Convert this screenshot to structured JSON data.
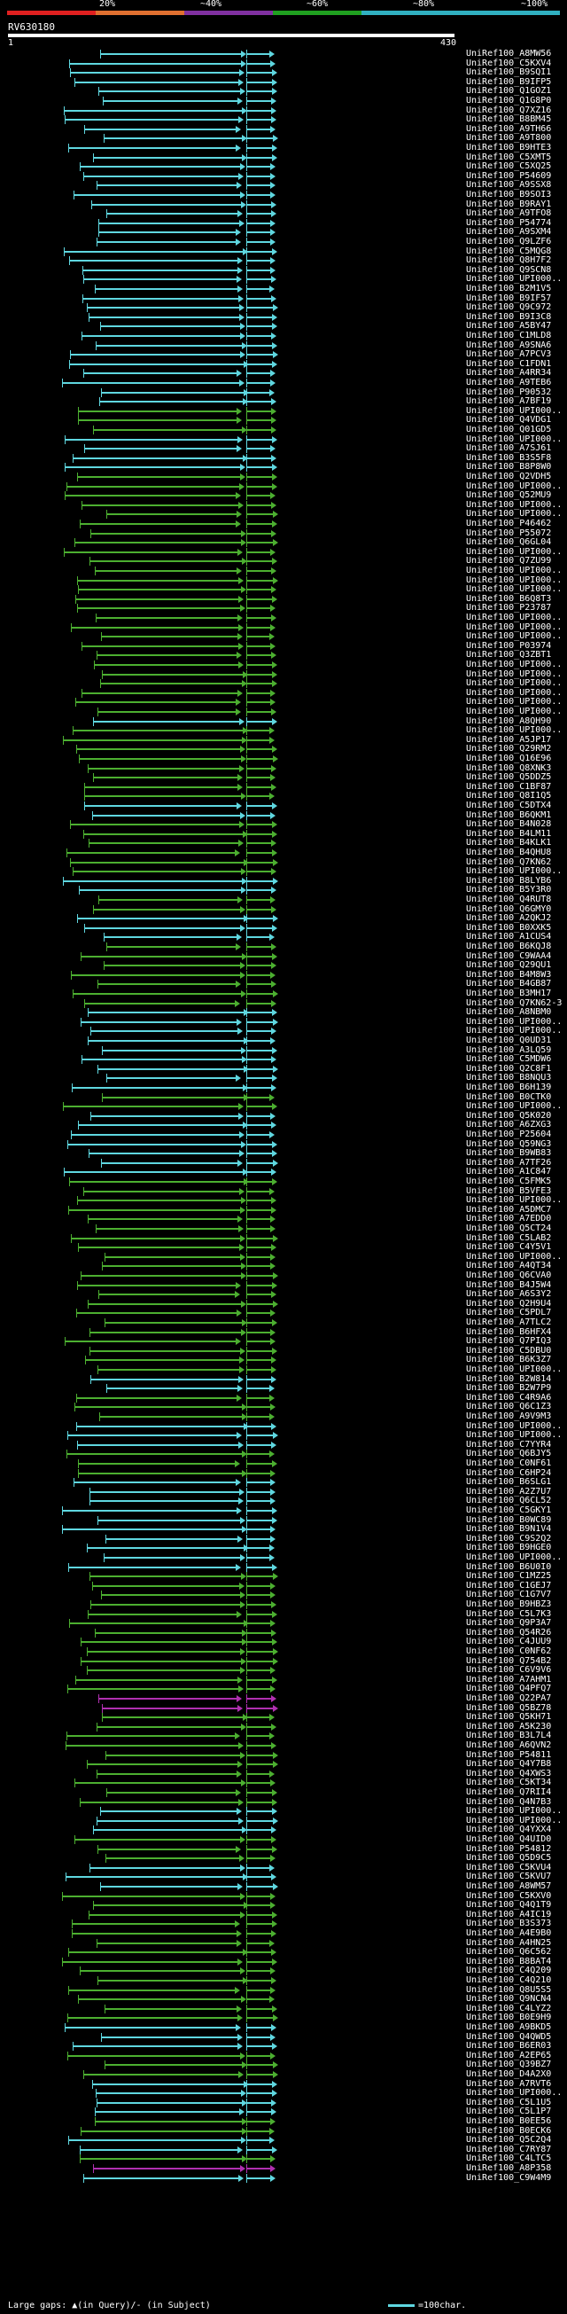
{
  "title": "RV630180",
  "query_start": "1",
  "query_end": "430",
  "scale": {
    "labels": [
      "20%",
      "~40%",
      "~60%",
      "~80%",
      "~100%"
    ],
    "colors": [
      "#e02020",
      "#e07030",
      "#8030a0",
      "#20a020",
      "#30b0c0"
    ]
  },
  "footer": "Large gaps: ▲(in Query)/- (in Subject)",
  "legend": "=100char.",
  "colors": {
    "cyan": "#5fd7e0",
    "green": "#4caf30",
    "magenta": "#b030b0"
  },
  "hits": [
    {
      "acc": "UniRef100_A8MW56",
      "c": "cyan"
    },
    {
      "acc": "UniRef100_C5KXV4",
      "c": "cyan"
    },
    {
      "acc": "UniRef100_B9SQI1",
      "c": "cyan"
    },
    {
      "acc": "UniRef100_B9IFP5",
      "c": "cyan"
    },
    {
      "acc": "UniRef100_Q1GOZ1",
      "c": "cyan"
    },
    {
      "acc": "UniRef100_Q1G8P0",
      "c": "cyan"
    },
    {
      "acc": "UniRef100_Q7XZ16",
      "c": "cyan"
    },
    {
      "acc": "UniRef100_B8BM45",
      "c": "cyan"
    },
    {
      "acc": "UniRef100_A9TH66",
      "c": "cyan"
    },
    {
      "acc": "UniRef100_A9T800",
      "c": "cyan"
    },
    {
      "acc": "UniRef100_B9HTE3",
      "c": "cyan"
    },
    {
      "acc": "UniRef100_C5XMT5",
      "c": "cyan"
    },
    {
      "acc": "UniRef100_C5XQ25",
      "c": "cyan"
    },
    {
      "acc": "UniRef100_P54609",
      "c": "cyan"
    },
    {
      "acc": "UniRef100_A9SSX8",
      "c": "cyan"
    },
    {
      "acc": "UniRef100_B9SOI3",
      "c": "cyan"
    },
    {
      "acc": "UniRef100_B9RAY1",
      "c": "cyan"
    },
    {
      "acc": "UniRef100_A9TFO8",
      "c": "cyan"
    },
    {
      "acc": "UniRef100_P54774",
      "c": "cyan"
    },
    {
      "acc": "UniRef100_A9SXM4",
      "c": "cyan"
    },
    {
      "acc": "UniRef100_Q9LZF6",
      "c": "cyan"
    },
    {
      "acc": "UniRef100_C5MQG8",
      "c": "cyan"
    },
    {
      "acc": "UniRef100_Q8H7F2",
      "c": "cyan"
    },
    {
      "acc": "UniRef100_Q9SCN8",
      "c": "cyan"
    },
    {
      "acc": "UniRef100_UPI000..",
      "c": "cyan"
    },
    {
      "acc": "UniRef100_B2M1V5",
      "c": "cyan"
    },
    {
      "acc": "UniRef100_B9IF57",
      "c": "cyan"
    },
    {
      "acc": "UniRef100_Q9C972",
      "c": "cyan"
    },
    {
      "acc": "UniRef100_B9I3C8",
      "c": "cyan"
    },
    {
      "acc": "UniRef100_A5BY47",
      "c": "cyan"
    },
    {
      "acc": "UniRef100_C1MLD8",
      "c": "cyan"
    },
    {
      "acc": "UniRef100_A9SNA6",
      "c": "cyan"
    },
    {
      "acc": "UniRef100_A7PCV3",
      "c": "cyan"
    },
    {
      "acc": "UniRef100_C1FDN1",
      "c": "cyan"
    },
    {
      "acc": "UniRef100_A4RR34",
      "c": "cyan"
    },
    {
      "acc": "UniRef100_A9TEB6",
      "c": "cyan"
    },
    {
      "acc": "UniRef100_P90532",
      "c": "cyan"
    },
    {
      "acc": "UniRef100_A7BF19",
      "c": "cyan"
    },
    {
      "acc": "UniRef100_UPI000..",
      "c": "green"
    },
    {
      "acc": "UniRef100_Q4VDG1",
      "c": "green"
    },
    {
      "acc": "UniRef100_Q01GD5",
      "c": "green"
    },
    {
      "acc": "UniRef100_UPI000..",
      "c": "cyan"
    },
    {
      "acc": "UniRef100_A7SJ61",
      "c": "cyan"
    },
    {
      "acc": "UniRef100_B3S5F8",
      "c": "cyan"
    },
    {
      "acc": "UniRef100_B8P8W0",
      "c": "cyan"
    },
    {
      "acc": "UniRef100_Q2VDH5",
      "c": "green"
    },
    {
      "acc": "UniRef100_UPI000..",
      "c": "green"
    },
    {
      "acc": "UniRef100_Q52MU9",
      "c": "green"
    },
    {
      "acc": "UniRef100_UPI000..",
      "c": "green"
    },
    {
      "acc": "UniRef100_UPI000..",
      "c": "green"
    },
    {
      "acc": "UniRef100_P46462",
      "c": "green"
    },
    {
      "acc": "UniRef100_P55072",
      "c": "green"
    },
    {
      "acc": "UniRef100_Q6GL04",
      "c": "green"
    },
    {
      "acc": "UniRef100_UPI000..",
      "c": "green"
    },
    {
      "acc": "UniRef100_Q7ZU99",
      "c": "green"
    },
    {
      "acc": "UniRef100_UPI000..",
      "c": "green"
    },
    {
      "acc": "UniRef100_UPI000..",
      "c": "green"
    },
    {
      "acc": "UniRef100_UPI000..",
      "c": "green"
    },
    {
      "acc": "UniRef100_B6Q8T3",
      "c": "green"
    },
    {
      "acc": "UniRef100_P23787",
      "c": "green"
    },
    {
      "acc": "UniRef100_UPI000..",
      "c": "green"
    },
    {
      "acc": "UniRef100_UPI000..",
      "c": "green"
    },
    {
      "acc": "UniRef100_UPI000..",
      "c": "green"
    },
    {
      "acc": "UniRef100_P03974",
      "c": "green"
    },
    {
      "acc": "UniRef100_Q3ZBT1",
      "c": "green"
    },
    {
      "acc": "UniRef100_UPI000..",
      "c": "green"
    },
    {
      "acc": "UniRef100_UPI000..",
      "c": "green"
    },
    {
      "acc": "UniRef100_UPI000..",
      "c": "green"
    },
    {
      "acc": "UniRef100_UPI000..",
      "c": "green"
    },
    {
      "acc": "UniRef100_UPI000..",
      "c": "green"
    },
    {
      "acc": "UniRef100_UPI000..",
      "c": "green"
    },
    {
      "acc": "UniRef100_A8QH90",
      "c": "cyan"
    },
    {
      "acc": "UniRef100_UPI000..",
      "c": "green"
    },
    {
      "acc": "UniRef100_A5JP17",
      "c": "green"
    },
    {
      "acc": "UniRef100_Q29RM2",
      "c": "green"
    },
    {
      "acc": "UniRef100_Q16E96",
      "c": "green"
    },
    {
      "acc": "UniRef100_Q8XNK3",
      "c": "green"
    },
    {
      "acc": "UniRef100_Q5DDZ5",
      "c": "green"
    },
    {
      "acc": "UniRef100_C1BF87",
      "c": "green"
    },
    {
      "acc": "UniRef100_Q8I1Q5",
      "c": "green"
    },
    {
      "acc": "UniRef100_C5DTX4",
      "c": "cyan"
    },
    {
      "acc": "UniRef100_B6QKM1",
      "c": "cyan"
    },
    {
      "acc": "UniRef100_B4N028",
      "c": "green"
    },
    {
      "acc": "UniRef100_B4LM11",
      "c": "green"
    },
    {
      "acc": "UniRef100_B4KLK1",
      "c": "green"
    },
    {
      "acc": "UniRef100_B4QHU8",
      "c": "green"
    },
    {
      "acc": "UniRef100_Q7KN62",
      "c": "green"
    },
    {
      "acc": "UniRef100_UPI000..",
      "c": "green"
    },
    {
      "acc": "UniRef100_B8LYB6",
      "c": "cyan"
    },
    {
      "acc": "UniRef100_B5Y3R0",
      "c": "cyan"
    },
    {
      "acc": "UniRef100_Q4RUT8",
      "c": "green"
    },
    {
      "acc": "UniRef100_Q6GMY0",
      "c": "green"
    },
    {
      "acc": "UniRef100_A2QKJ2",
      "c": "cyan"
    },
    {
      "acc": "UniRef100_B0XXK5",
      "c": "cyan"
    },
    {
      "acc": "UniRef100_A1CUS4",
      "c": "cyan"
    },
    {
      "acc": "UniRef100_B6KQJ8",
      "c": "green"
    },
    {
      "acc": "UniRef100_C9WAA4",
      "c": "green"
    },
    {
      "acc": "UniRef100_Q29QU1",
      "c": "green"
    },
    {
      "acc": "UniRef100_B4M8W3",
      "c": "green"
    },
    {
      "acc": "UniRef100_B4GB87",
      "c": "green"
    },
    {
      "acc": "UniRef100_B3MH17",
      "c": "green"
    },
    {
      "acc": "UniRef100_Q7KN62-3",
      "c": "green"
    },
    {
      "acc": "UniRef100_A8NBM0",
      "c": "cyan"
    },
    {
      "acc": "UniRef100_UPI000..",
      "c": "cyan"
    },
    {
      "acc": "UniRef100_UPI000..",
      "c": "cyan"
    },
    {
      "acc": "UniRef100_Q0UD31",
      "c": "cyan"
    },
    {
      "acc": "UniRef100_A3LQ59",
      "c": "cyan"
    },
    {
      "acc": "UniRef100_C5MDW6",
      "c": "cyan"
    },
    {
      "acc": "UniRef100_Q2C8F1",
      "c": "cyan"
    },
    {
      "acc": "UniRef100_B8NQU3",
      "c": "cyan"
    },
    {
      "acc": "UniRef100_B6H139",
      "c": "cyan"
    },
    {
      "acc": "UniRef100_B0CTK0",
      "c": "green"
    },
    {
      "acc": "UniRef100_UPI000..",
      "c": "green"
    },
    {
      "acc": "UniRef100_Q5K020",
      "c": "cyan"
    },
    {
      "acc": "UniRef100_A6ZXG3",
      "c": "cyan"
    },
    {
      "acc": "UniRef100_P25604",
      "c": "cyan"
    },
    {
      "acc": "UniRef100_Q59NG3",
      "c": "cyan"
    },
    {
      "acc": "UniRef100_B9WB83",
      "c": "cyan"
    },
    {
      "acc": "UniRef100_A7TF26",
      "c": "cyan"
    },
    {
      "acc": "UniRef100_A1C847",
      "c": "cyan"
    },
    {
      "acc": "UniRef100_C5FMK5",
      "c": "green"
    },
    {
      "acc": "UniRef100_B5VFE3",
      "c": "green"
    },
    {
      "acc": "UniRef100_UPI000..",
      "c": "green"
    },
    {
      "acc": "UniRef100_A5DMC7",
      "c": "green"
    },
    {
      "acc": "UniRef100_A7EDD0",
      "c": "green"
    },
    {
      "acc": "UniRef100_Q5CT24",
      "c": "green"
    },
    {
      "acc": "UniRef100_C5LAB2",
      "c": "green"
    },
    {
      "acc": "UniRef100_C4Y5V1",
      "c": "green"
    },
    {
      "acc": "UniRef100_UPI000..",
      "c": "green"
    },
    {
      "acc": "UniRef100_A4QT34",
      "c": "green"
    },
    {
      "acc": "UniRef100_Q6CVA0",
      "c": "green"
    },
    {
      "acc": "UniRef100_B4J5W4",
      "c": "green"
    },
    {
      "acc": "UniRef100_A6S3Y2",
      "c": "green"
    },
    {
      "acc": "UniRef100_Q2H9U4",
      "c": "green"
    },
    {
      "acc": "UniRef100_C5PDL7",
      "c": "green"
    },
    {
      "acc": "UniRef100_A7TLC2",
      "c": "green"
    },
    {
      "acc": "UniRef100_B6HFX4",
      "c": "green"
    },
    {
      "acc": "UniRef100_Q7PIQ3",
      "c": "green"
    },
    {
      "acc": "UniRef100_C5DBU0",
      "c": "green"
    },
    {
      "acc": "UniRef100_B6K3Z7",
      "c": "green"
    },
    {
      "acc": "UniRef100_UPI000..",
      "c": "green"
    },
    {
      "acc": "UniRef100_B2W814",
      "c": "cyan"
    },
    {
      "acc": "UniRef100_B2W7P9",
      "c": "cyan"
    },
    {
      "acc": "UniRef100_C4R9A6",
      "c": "green"
    },
    {
      "acc": "UniRef100_Q6C1Z3",
      "c": "green"
    },
    {
      "acc": "UniRef100_A9V9M3",
      "c": "green"
    },
    {
      "acc": "UniRef100_UPI000..",
      "c": "cyan"
    },
    {
      "acc": "UniRef100_UPI000..",
      "c": "cyan"
    },
    {
      "acc": "UniRef100_C7YYR4",
      "c": "cyan"
    },
    {
      "acc": "UniRef100_Q6BJY5",
      "c": "green"
    },
    {
      "acc": "UniRef100_C0NF61",
      "c": "green"
    },
    {
      "acc": "UniRef100_C6HP24",
      "c": "green"
    },
    {
      "acc": "UniRef100_B6SLG1",
      "c": "cyan"
    },
    {
      "acc": "UniRef100_A2Z7U7",
      "c": "cyan"
    },
    {
      "acc": "UniRef100_Q6CL52",
      "c": "cyan"
    },
    {
      "acc": "UniRef100_C5GKY1",
      "c": "cyan"
    },
    {
      "acc": "UniRef100_B0WC89",
      "c": "cyan"
    },
    {
      "acc": "UniRef100_B9N1V4",
      "c": "cyan"
    },
    {
      "acc": "UniRef100_C9S2Q2",
      "c": "cyan"
    },
    {
      "acc": "UniRef100_B9HGE0",
      "c": "cyan"
    },
    {
      "acc": "UniRef100_UPI000..",
      "c": "cyan"
    },
    {
      "acc": "UniRef100_B6U0I0",
      "c": "cyan"
    },
    {
      "acc": "UniRef100_C1MZ25",
      "c": "green"
    },
    {
      "acc": "UniRef100_C1GEJ7",
      "c": "green"
    },
    {
      "acc": "UniRef100_C1G7V7",
      "c": "green"
    },
    {
      "acc": "UniRef100_B9HBZ3",
      "c": "green"
    },
    {
      "acc": "UniRef100_C5L7K3",
      "c": "green"
    },
    {
      "acc": "UniRef100_Q9P3A7",
      "c": "green"
    },
    {
      "acc": "UniRef100_Q54R26",
      "c": "green"
    },
    {
      "acc": "UniRef100_C4JUU9",
      "c": "green"
    },
    {
      "acc": "UniRef100_C0NF62",
      "c": "green"
    },
    {
      "acc": "UniRef100_Q754B2",
      "c": "green"
    },
    {
      "acc": "UniRef100_C6V9V6",
      "c": "green"
    },
    {
      "acc": "UniRef100_A7AHM1",
      "c": "green"
    },
    {
      "acc": "UniRef100_Q4PFQ7",
      "c": "green"
    },
    {
      "acc": "UniRef100_Q22PA7",
      "c": "magenta"
    },
    {
      "acc": "UniRef100_Q5BZ78",
      "c": "magenta"
    },
    {
      "acc": "UniRef100_Q5KH71",
      "c": "green"
    },
    {
      "acc": "UniRef100_A5K230",
      "c": "green"
    },
    {
      "acc": "UniRef100_B3L7L4",
      "c": "green"
    },
    {
      "acc": "UniRef100_A6QVN2",
      "c": "green"
    },
    {
      "acc": "UniRef100_P54811",
      "c": "green"
    },
    {
      "acc": "UniRef100_Q4Y7B8",
      "c": "green"
    },
    {
      "acc": "UniRef100_Q4XWS3",
      "c": "green"
    },
    {
      "acc": "UniRef100_C5KT34",
      "c": "green"
    },
    {
      "acc": "UniRef100_Q7RII4",
      "c": "green"
    },
    {
      "acc": "UniRef100_Q4N7B3",
      "c": "green"
    },
    {
      "acc": "UniRef100_UPI000..",
      "c": "cyan"
    },
    {
      "acc": "UniRef100_UPI000..",
      "c": "cyan"
    },
    {
      "acc": "UniRef100_Q4YXX4",
      "c": "cyan"
    },
    {
      "acc": "UniRef100_Q4UID0",
      "c": "green"
    },
    {
      "acc": "UniRef100_P54812",
      "c": "green"
    },
    {
      "acc": "UniRef100_Q5D9C5",
      "c": "green"
    },
    {
      "acc": "UniRef100_C5KVU4",
      "c": "cyan"
    },
    {
      "acc": "UniRef100_C5KVU7",
      "c": "cyan"
    },
    {
      "acc": "UniRef100_A8WM57",
      "c": "cyan"
    },
    {
      "acc": "UniRef100_C5KXV0",
      "c": "green"
    },
    {
      "acc": "UniRef100_Q4Q1T9",
      "c": "green"
    },
    {
      "acc": "UniRef100_A4IC19",
      "c": "green"
    },
    {
      "acc": "UniRef100_B3S373",
      "c": "green"
    },
    {
      "acc": "UniRef100_A4E9B0",
      "c": "green"
    },
    {
      "acc": "UniRef100_A4HN25",
      "c": "green"
    },
    {
      "acc": "UniRef100_Q6C562",
      "c": "green"
    },
    {
      "acc": "UniRef100_B8BAT4",
      "c": "green"
    },
    {
      "acc": "UniRef100_C4Q209",
      "c": "green"
    },
    {
      "acc": "UniRef100_C4Q210",
      "c": "green"
    },
    {
      "acc": "UniRef100_Q8U5S5",
      "c": "green"
    },
    {
      "acc": "UniRef100_Q9NCN4",
      "c": "green"
    },
    {
      "acc": "UniRef100_C4LYZ2",
      "c": "green"
    },
    {
      "acc": "UniRef100_B0E9H9",
      "c": "green"
    },
    {
      "acc": "UniRef100_A9BKD5",
      "c": "cyan"
    },
    {
      "acc": "UniRef100_Q4QWD5",
      "c": "cyan"
    },
    {
      "acc": "UniRef100_B6ER03",
      "c": "cyan"
    },
    {
      "acc": "UniRef100_A2EP65",
      "c": "green"
    },
    {
      "acc": "UniRef100_Q39BZ7",
      "c": "green"
    },
    {
      "acc": "UniRef100_D4A2X0",
      "c": "green"
    },
    {
      "acc": "UniRef100_A7RVT6",
      "c": "cyan"
    },
    {
      "acc": "UniRef100_UPI000..",
      "c": "cyan"
    },
    {
      "acc": "UniRef100_C5L1U5",
      "c": "cyan"
    },
    {
      "acc": "UniRef100_C5L1P7",
      "c": "cyan"
    },
    {
      "acc": "UniRef100_B0EE56",
      "c": "green"
    },
    {
      "acc": "UniRef100_B0ECK6",
      "c": "green"
    },
    {
      "acc": "UniRef100_Q5C2Q4",
      "c": "cyan"
    },
    {
      "acc": "UniRef100_C7RY87",
      "c": "cyan"
    },
    {
      "acc": "UniRef100_C4LTC5",
      "c": "green"
    },
    {
      "acc": "UniRef100_A8P358",
      "c": "magenta"
    },
    {
      "acc": "UniRef100_C9W4M9",
      "c": "cyan"
    }
  ]
}
